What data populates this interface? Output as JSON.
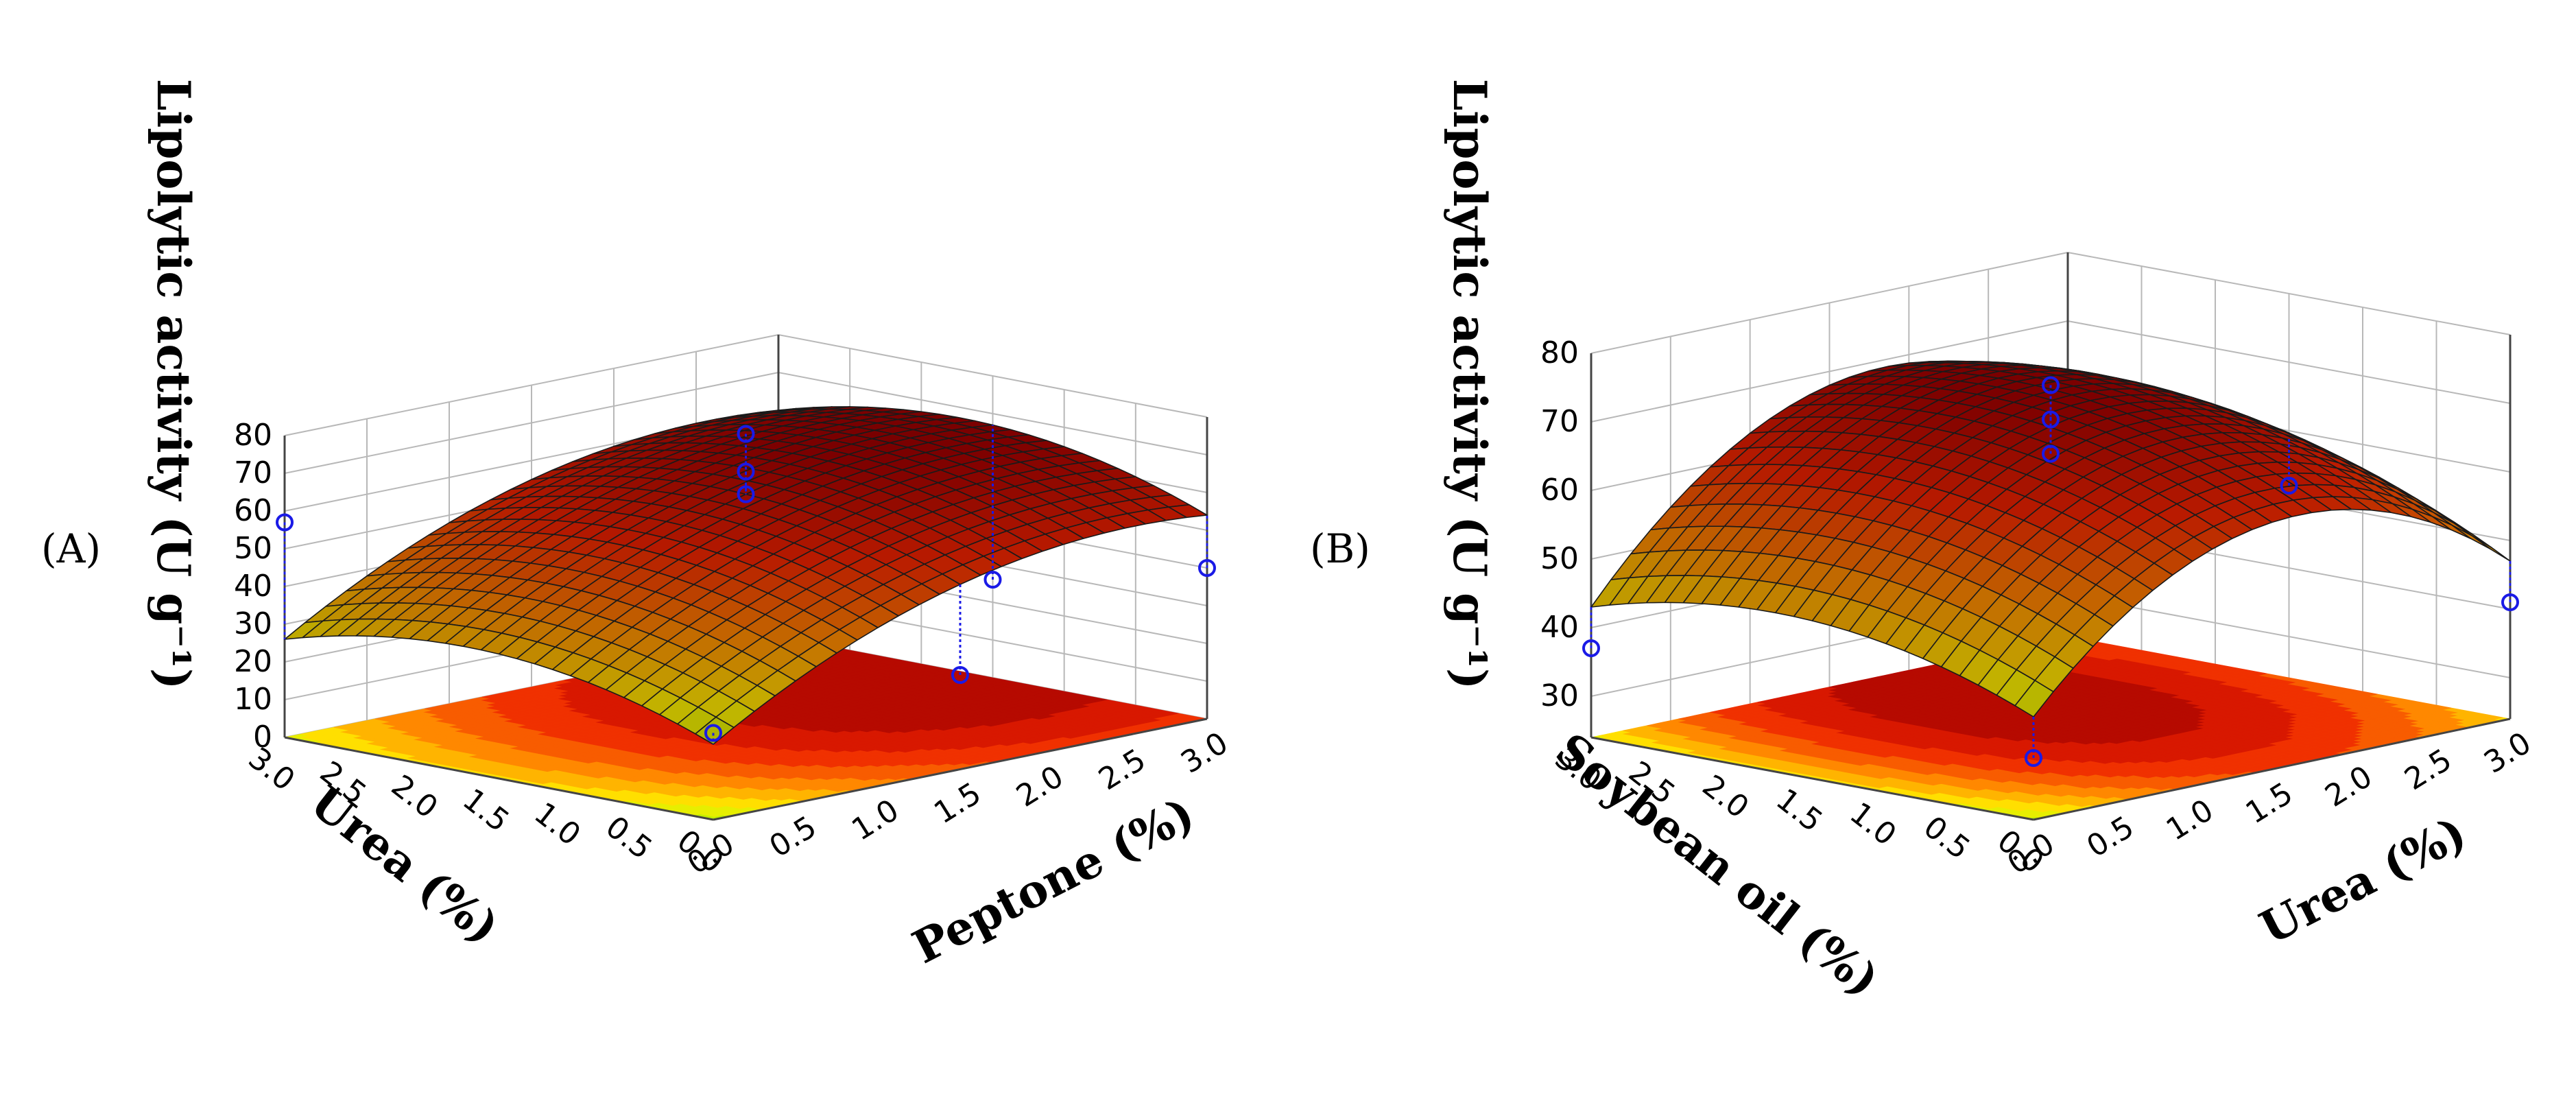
{
  "chart_data": [
    {
      "type": "surface",
      "panel_label": "(A)",
      "xlabel": "Peptone (%)",
      "ylabel": "Urea (%)",
      "zlabel": "Lipolytic activity (U g⁻¹)",
      "x_ticks": [
        "0.0",
        "0.5",
        "1.0",
        "1.5",
        "2.0",
        "2.5",
        "3.0"
      ],
      "y_ticks": [
        "0.0",
        "0.5",
        "1.0",
        "1.5",
        "2.0",
        "2.5",
        "3.0"
      ],
      "z_ticks": [
        "0",
        "10",
        "20",
        "30",
        "40",
        "50",
        "60",
        "70",
        "80"
      ],
      "xlim": [
        0,
        3.0
      ],
      "ylim": [
        0,
        3.0
      ],
      "zlim": [
        0,
        80
      ],
      "model": {
        "a": 62,
        "b1": 17,
        "b2": 3,
        "b11": -12,
        "b22": -10,
        "b12": 0,
        "center": [
          1.5,
          1.5
        ]
      },
      "points": [
        {
          "x": 1.5,
          "y": 1.5,
          "z": 78
        },
        {
          "x": 1.5,
          "y": 1.5,
          "z": 68
        },
        {
          "x": 1.5,
          "y": 1.5,
          "z": 62
        },
        {
          "x": 0.0,
          "y": 3.0,
          "z": 57
        },
        {
          "x": 3.0,
          "y": 0.0,
          "z": 40
        },
        {
          "x": 0.0,
          "y": 0.0,
          "z": 23
        },
        {
          "x": 1.5,
          "y": 0.0,
          "z": 25
        },
        {
          "x": 3.0,
          "y": 1.5,
          "z": 26
        }
      ],
      "colormap": [
        "#00aa00",
        "#aaee00",
        "#ffee00",
        "#ff8800",
        "#ee2200",
        "#a00000",
        "#700000"
      ],
      "grid": true
    },
    {
      "type": "surface",
      "panel_label": "(B)",
      "xlabel": "Urea (%)",
      "ylabel": "Soybean oil (%)",
      "zlabel": "Lipolytic activity (U g⁻¹)",
      "x_ticks": [
        "0.0",
        "0.5",
        "1.0",
        "1.5",
        "2.0",
        "2.5",
        "3.0"
      ],
      "y_ticks": [
        "0.0",
        "0.5",
        "1.0",
        "1.5",
        "2.0",
        "2.5",
        "3.0"
      ],
      "z_ticks": [
        "30",
        "40",
        "50",
        "60",
        "70",
        "80"
      ],
      "xlim": [
        0,
        3.0
      ],
      "ylim": [
        0,
        3.0
      ],
      "zlim": [
        24,
        80
      ],
      "model": {
        "a": 70,
        "b1": 6,
        "b2": 4,
        "b11": -17,
        "b22": -6,
        "b12": 2,
        "center": [
          1.5,
          1.5
        ]
      },
      "points": [
        {
          "x": 1.5,
          "y": 1.5,
          "z": 74
        },
        {
          "x": 1.5,
          "y": 1.5,
          "z": 69
        },
        {
          "x": 1.5,
          "y": 1.5,
          "z": 64
        },
        {
          "x": 3.0,
          "y": 1.5,
          "z": 52
        },
        {
          "x": 3.0,
          "y": 0.0,
          "z": 41
        },
        {
          "x": 0.0,
          "y": 3.0,
          "z": 37
        },
        {
          "x": 0.0,
          "y": 0.0,
          "z": 33
        }
      ],
      "colormap": [
        "#00aa00",
        "#aaee00",
        "#ffee00",
        "#ff8800",
        "#ee2200",
        "#a00000",
        "#700000"
      ],
      "grid": true
    }
  ]
}
